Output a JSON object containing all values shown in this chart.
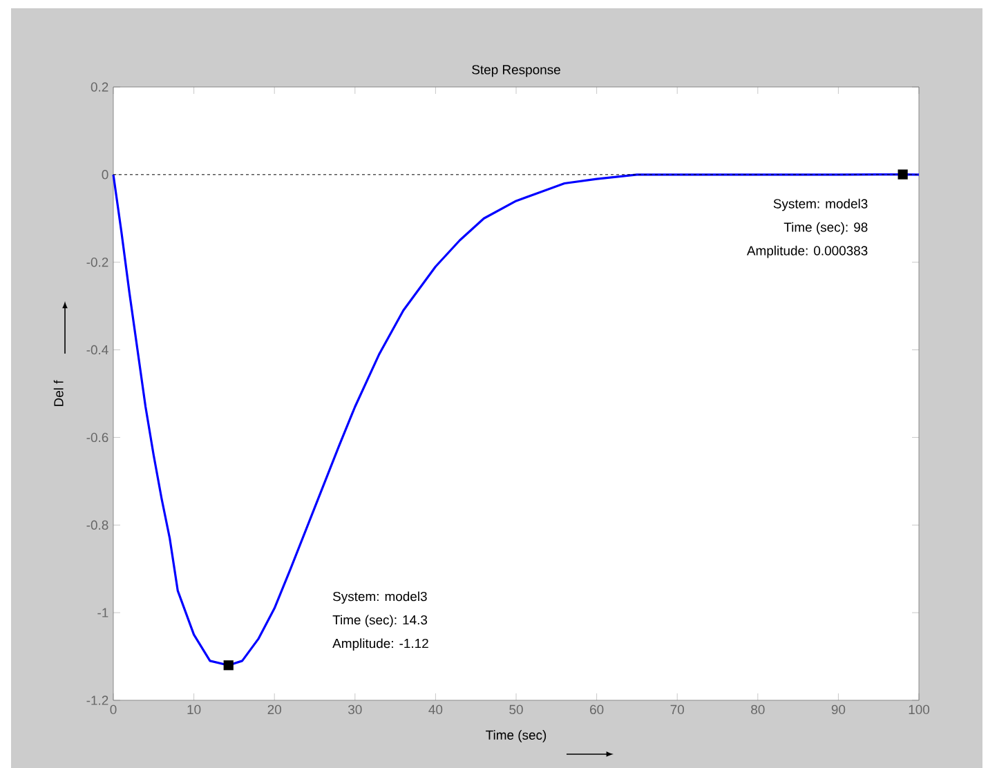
{
  "chart_data": {
    "type": "line",
    "title": "Step Response",
    "xlabel": "Time (sec)",
    "ylabel": "Del f",
    "x": [
      0,
      1,
      2,
      3,
      4,
      5,
      6,
      7,
      8,
      10,
      12,
      14.3,
      16,
      18,
      20,
      22,
      25,
      28,
      30,
      33,
      36,
      40,
      43,
      46,
      50,
      53,
      56,
      60,
      65,
      70,
      80,
      90,
      98,
      100
    ],
    "series": [
      {
        "color": "#0000ff",
        "values": [
          0,
          -0.13,
          -0.27,
          -0.4,
          -0.53,
          -0.64,
          -0.74,
          -0.83,
          -0.95,
          -1.05,
          -1.11,
          -1.12,
          -1.11,
          -1.06,
          -0.99,
          -0.9,
          -0.76,
          -0.62,
          -0.53,
          -0.41,
          -0.31,
          -0.21,
          -0.15,
          -0.1,
          -0.06,
          -0.04,
          -0.02,
          -0.01,
          0,
          0,
          0,
          0,
          0.000383,
          0
        ]
      },
      {
        "type": "scatter",
        "color": "#000000",
        "marker": "square",
        "x": [
          98,
          14.3
        ],
        "values": [
          0.000383,
          -1.12
        ]
      }
    ],
    "xlim": [
      0,
      100
    ],
    "ylim": [
      -1.2,
      0.2
    ],
    "xticks": [
      0,
      10,
      20,
      30,
      40,
      50,
      60,
      70,
      80,
      90,
      100
    ],
    "yticks": [
      -1.2,
      -1,
      -0.8,
      -0.6,
      -0.4,
      -0.2,
      0,
      0.2
    ],
    "ref_lines": [
      {
        "axis": "y",
        "value": 0,
        "color": "#000000",
        "line_style": "dashed"
      }
    ],
    "annotations": [
      "System: model3",
      "Time (sec): 98",
      "Amplitude: 0.000383",
      "System: model3",
      "Time (sec): 14.3",
      "Amplitude: -1.12"
    ],
    "grid": false,
    "line_style": "solid",
    "marker": "none"
  }
}
